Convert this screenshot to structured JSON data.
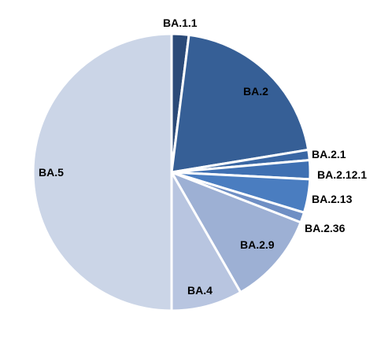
{
  "chart_data": {
    "type": "pie",
    "title": "",
    "start": "12 o'clock",
    "direction": "clockwise",
    "slices": [
      {
        "label": "BA.1.1",
        "value": 2.0,
        "color": "#2b4a78"
      },
      {
        "label": "BA.2",
        "value": 20.4,
        "color": "#365f96"
      },
      {
        "label": "BA.2.1",
        "value": 1.2,
        "color": "#3a67a4"
      },
      {
        "label": "BA.2.12.1",
        "value": 2.2,
        "color": "#3f70b2"
      },
      {
        "label": "BA.2.13",
        "value": 3.9,
        "color": "#4a7dc0"
      },
      {
        "label": "BA.2.36",
        "value": 1.2,
        "color": "#6f8fc4"
      },
      {
        "label": "BA.2.9",
        "value": 10.8,
        "color": "#9db0d4"
      },
      {
        "label": "BA.4",
        "value": 8.3,
        "color": "#b8c5e0"
      },
      {
        "label": "BA.5",
        "value": 50.0,
        "color": "#cbd5e7"
      }
    ]
  }
}
